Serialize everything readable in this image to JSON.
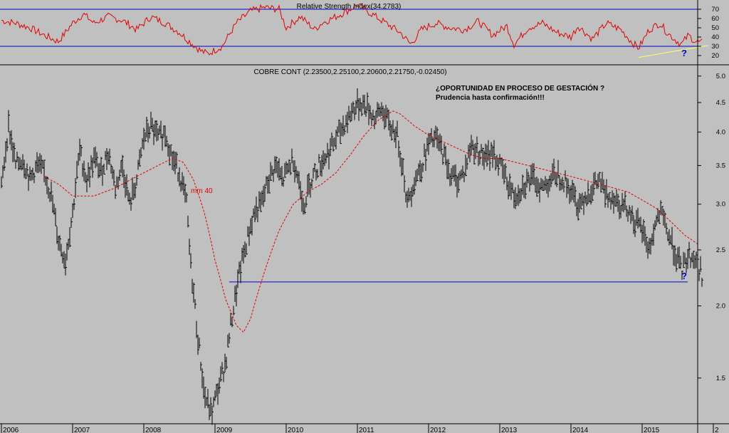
{
  "chart_data": [
    {
      "type": "line",
      "title": "Relative Strength Index(34.2783)",
      "ylim": [
        10,
        80
      ],
      "y_ticks": [
        20,
        30,
        40,
        50,
        60,
        70
      ],
      "reference_lines": [
        30,
        70
      ],
      "colors": {
        "rsi": "#e00000",
        "reference": "#0000cc",
        "trendline": "#ffff66",
        "background": "#c0c0c0"
      },
      "series": [
        {
          "name": "",
          "x": [
            2006.0,
            2006.2,
            2006.4,
            2006.6,
            2006.8,
            2007.0,
            2007.15,
            2007.3,
            2007.5,
            2007.7,
            2007.9,
            2008.1,
            2008.3,
            2008.5,
            2008.6,
            2008.8,
            2008.9,
            2009.1,
            2009.3,
            2009.5,
            2009.7,
            2009.9,
            2010.0,
            2010.2,
            2010.4,
            2010.5,
            2010.7,
            2010.9,
            2011.0,
            2011.2,
            2011.4,
            2011.6,
            2011.75,
            2011.9,
            2012.1,
            2012.3,
            2012.5,
            2012.7,
            2012.9,
            2013.1,
            2013.2,
            2013.4,
            2013.6,
            2013.8,
            2014.0,
            2014.1,
            2014.3,
            2014.5,
            2014.7,
            2014.85,
            2014.95,
            2015.1,
            2015.25,
            2015.35,
            2015.45,
            2015.55,
            2015.65,
            2015.75,
            2015.85
          ],
          "values": [
            58,
            55,
            50,
            42,
            35,
            55,
            65,
            55,
            62,
            58,
            48,
            62,
            55,
            45,
            38,
            25,
            22,
            30,
            55,
            68,
            72,
            70,
            50,
            62,
            48,
            55,
            62,
            70,
            75,
            65,
            55,
            45,
            32,
            48,
            55,
            50,
            48,
            57,
            42,
            52,
            32,
            50,
            55,
            45,
            40,
            52,
            38,
            55,
            48,
            35,
            28,
            48,
            55,
            45,
            38,
            32,
            42,
            35,
            34
          ]
        }
      ],
      "trendline": {
        "x": [
          2014.95,
          2015.85
        ],
        "y": [
          18,
          31
        ]
      },
      "annotations": [
        "?"
      ]
    },
    {
      "type": "line",
      "title": "COBRE CONT (2.23500,2.25100,2.20600,2.21750,-0.02450)",
      "y_scale": "log",
      "ylim": [
        1.25,
        5.2
      ],
      "y_ticks": [
        "5.0",
        "4.5",
        "4.0",
        "3.5",
        "3.0",
        "2.5",
        "2.0",
        "1.5"
      ],
      "x_ticks": [
        "2006",
        "2007",
        "2008",
        "2009",
        "2010",
        "2011",
        "2012",
        "2013",
        "2014",
        "2015",
        "2"
      ],
      "colors": {
        "price": "#000000",
        "ma": "#e00000",
        "support": "#0000cc",
        "background": "#c0c0c0"
      },
      "series": [
        {
          "name": "",
          "kind": "weekly price bars",
          "x": [
            2006.0,
            2006.1,
            2006.2,
            2006.3,
            2006.4,
            2006.5,
            2006.6,
            2006.7,
            2006.8,
            2006.9,
            2007.0,
            2007.1,
            2007.2,
            2007.3,
            2007.4,
            2007.5,
            2007.6,
            2007.7,
            2007.8,
            2007.9,
            2008.0,
            2008.1,
            2008.2,
            2008.3,
            2008.4,
            2008.5,
            2008.6,
            2008.65,
            2008.75,
            2008.85,
            2008.95,
            2009.05,
            2009.15,
            2009.25,
            2009.35,
            2009.45,
            2009.55,
            2009.65,
            2009.75,
            2009.85,
            2009.95,
            2010.1,
            2010.25,
            2010.35,
            2010.45,
            2010.6,
            2010.75,
            2010.85,
            2010.95,
            2011.05,
            2011.15,
            2011.25,
            2011.35,
            2011.45,
            2011.55,
            2011.65,
            2011.7,
            2011.8,
            2011.9,
            2012.0,
            2012.1,
            2012.2,
            2012.3,
            2012.4,
            2012.5,
            2012.6,
            2012.7,
            2012.8,
            2012.9,
            2013.0,
            2013.1,
            2013.2,
            2013.3,
            2013.4,
            2013.5,
            2013.6,
            2013.7,
            2013.8,
            2013.9,
            2014.0,
            2014.1,
            2014.2,
            2014.3,
            2014.4,
            2014.5,
            2014.6,
            2014.7,
            2014.8,
            2014.9,
            2015.0,
            2015.1,
            2015.2,
            2015.25,
            2015.35,
            2015.45,
            2015.55,
            2015.65,
            2015.75,
            2015.85
          ],
          "values": [
            3.2,
            4.1,
            3.5,
            3.6,
            3.3,
            3.5,
            3.4,
            3.1,
            2.6,
            2.4,
            2.9,
            3.7,
            3.3,
            3.6,
            3.4,
            3.7,
            3.2,
            3.5,
            3.0,
            3.3,
            3.9,
            4.1,
            3.9,
            4.0,
            3.6,
            3.4,
            3.0,
            2.4,
            1.8,
            1.4,
            1.3,
            1.45,
            1.6,
            1.95,
            2.3,
            2.6,
            2.9,
            3.0,
            3.3,
            3.5,
            3.3,
            3.6,
            3.0,
            3.3,
            3.5,
            3.7,
            4.0,
            4.2,
            4.4,
            4.5,
            4.4,
            4.2,
            4.4,
            4.1,
            4.0,
            3.4,
            3.0,
            3.3,
            3.5,
            3.8,
            3.9,
            3.7,
            3.4,
            3.3,
            3.4,
            3.8,
            3.7,
            3.6,
            3.7,
            3.5,
            3.3,
            3.1,
            3.2,
            3.3,
            3.3,
            3.2,
            3.3,
            3.4,
            3.3,
            3.15,
            3.0,
            3.1,
            3.2,
            3.3,
            3.1,
            3.1,
            3.0,
            2.95,
            2.8,
            2.7,
            2.5,
            2.8,
            2.9,
            2.7,
            2.5,
            2.3,
            2.45,
            2.4,
            2.25
          ]
        },
        {
          "name": "mm 40",
          "x": [
            2006.6,
            2006.8,
            2007.0,
            2007.3,
            2007.6,
            2007.9,
            2008.2,
            2008.4,
            2008.55,
            2008.7,
            2008.85,
            2009.0,
            2009.15,
            2009.3,
            2009.4,
            2009.5,
            2009.7,
            2009.9,
            2010.1,
            2010.3,
            2010.5,
            2010.7,
            2010.9,
            2011.1,
            2011.3,
            2011.5,
            2011.6,
            2011.8,
            2012.0,
            2012.2,
            2012.4,
            2012.6,
            2012.8,
            2013.0,
            2013.2,
            2013.4,
            2013.6,
            2013.8,
            2014.0,
            2014.2,
            2014.4,
            2014.6,
            2014.8,
            2015.0,
            2015.2,
            2015.4,
            2015.6,
            2015.8
          ],
          "values": [
            3.35,
            3.25,
            3.1,
            3.1,
            3.2,
            3.35,
            3.5,
            3.6,
            3.55,
            3.3,
            2.9,
            2.4,
            2.05,
            1.85,
            1.8,
            1.9,
            2.3,
            2.7,
            3.0,
            3.15,
            3.25,
            3.4,
            3.65,
            3.95,
            4.2,
            4.35,
            4.3,
            4.1,
            3.95,
            3.85,
            3.75,
            3.65,
            3.6,
            3.6,
            3.55,
            3.5,
            3.45,
            3.4,
            3.35,
            3.3,
            3.25,
            3.2,
            3.15,
            3.05,
            2.95,
            2.8,
            2.65,
            2.55
          ]
        }
      ],
      "support_level": 2.2,
      "annotations": [
        "¿OPORTUNIDAD EN PROCESO DE GESTACIÓN ?",
        "Prudencia hasta confirmación!!!",
        "mm 40",
        "?"
      ]
    }
  ]
}
